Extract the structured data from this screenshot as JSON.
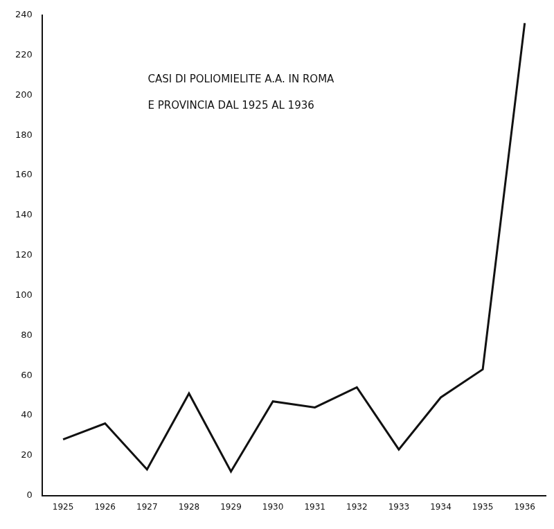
{
  "chart_data": {
    "type": "line",
    "title": [
      "CASI DI POLIOMIELITE A.A. IN ROMA",
      "E PROVINCIA DAL 1925 AL 1936"
    ],
    "categories": [
      "1925",
      "1926",
      "1927",
      "1928",
      "1929",
      "1930",
      "1931",
      "1932",
      "1933",
      "1934",
      "1935",
      "1936"
    ],
    "values": [
      28,
      36,
      13,
      51,
      12,
      47,
      44,
      54,
      23,
      49,
      63,
      236
    ],
    "color": "#111111",
    "ylim": [
      0,
      240
    ],
    "yticks": [
      0,
      20,
      40,
      60,
      80,
      100,
      120,
      140,
      160,
      180,
      200,
      220,
      240
    ],
    "grid": false,
    "marker": "none",
    "line_style": "solid"
  }
}
